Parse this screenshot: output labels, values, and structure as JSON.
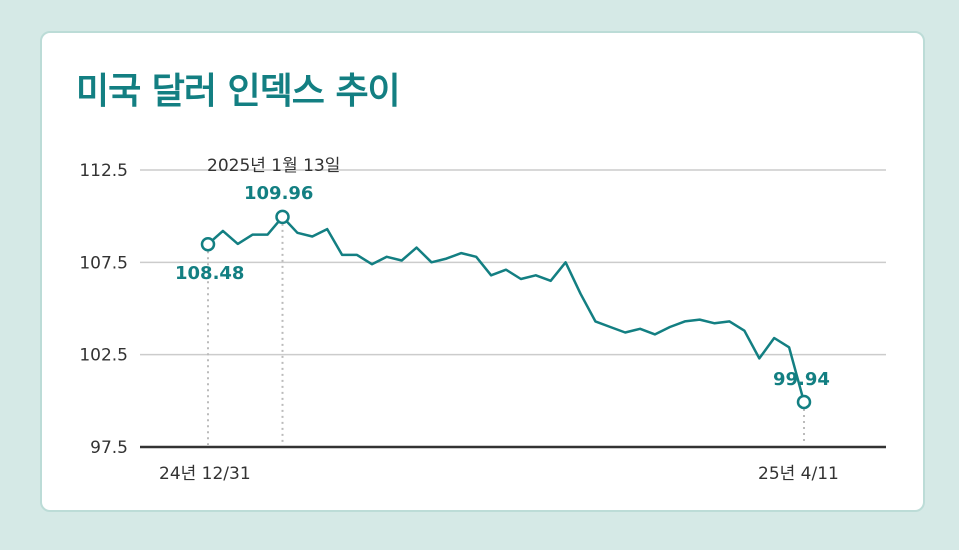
{
  "title": "미국 달러 인덱스 추이",
  "colors": {
    "line": "#137f82",
    "grid": "#cccccc",
    "axis": "#333333",
    "background": "#d5e9e6"
  },
  "chart_data": {
    "type": "line",
    "title": "미국 달러 인덱스 추이",
    "yticks": [
      "112.5",
      "107.5",
      "102.5",
      "97.5"
    ],
    "ylim": [
      97.5,
      112.5
    ],
    "xtick_labels": [
      "24년 12/31",
      "25년 4/11"
    ],
    "grid": true,
    "series": [
      {
        "values": [
          108.48,
          109.2,
          108.5,
          109.0,
          109.0,
          109.96,
          109.1,
          108.9,
          109.3,
          107.9,
          107.9,
          107.4,
          107.8,
          107.6,
          108.3,
          107.5,
          107.7,
          108.0,
          107.8,
          106.8,
          107.1,
          106.6,
          106.8,
          106.5,
          107.5,
          105.8,
          104.3,
          104.0,
          103.7,
          103.9,
          103.6,
          104.0,
          104.3,
          104.4,
          104.2,
          104.3,
          103.8,
          102.3,
          103.4,
          102.9,
          99.94
        ],
        "labels": {
          "start": {
            "date": "24년 12/31",
            "value": "108.48"
          },
          "max": {
            "date": "2025년 1월 13일",
            "value": "109.96"
          },
          "end": {
            "date": "25년 4/11",
            "value": "99.94"
          }
        }
      }
    ]
  }
}
